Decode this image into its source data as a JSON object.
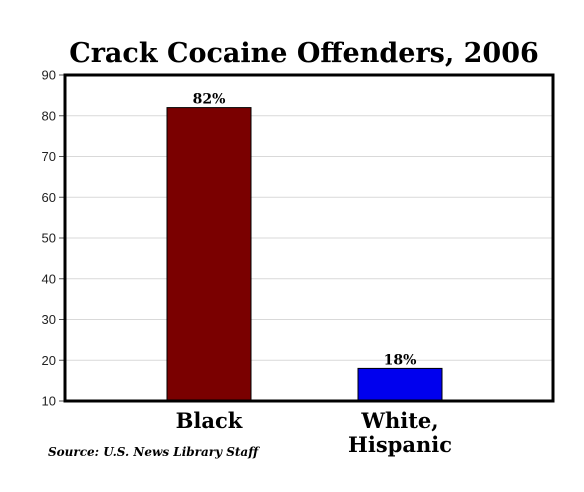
{
  "chart_data": {
    "type": "bar",
    "title": "Crack Cocaine Offenders, 2006",
    "categories": [
      [
        "Black"
      ],
      [
        "White,",
        "Hispanic"
      ]
    ],
    "values": [
      82,
      18
    ],
    "data_labels": [
      "82%",
      "18%"
    ],
    "colors": [
      "#7a0000",
      "#0000ee"
    ],
    "ylim": [
      10,
      90
    ],
    "yticks": [
      10,
      20,
      30,
      40,
      50,
      60,
      70,
      80,
      90
    ],
    "grid": true,
    "xlabel": "",
    "ylabel": ""
  },
  "source": "Source:  U.S. News Library Staff"
}
